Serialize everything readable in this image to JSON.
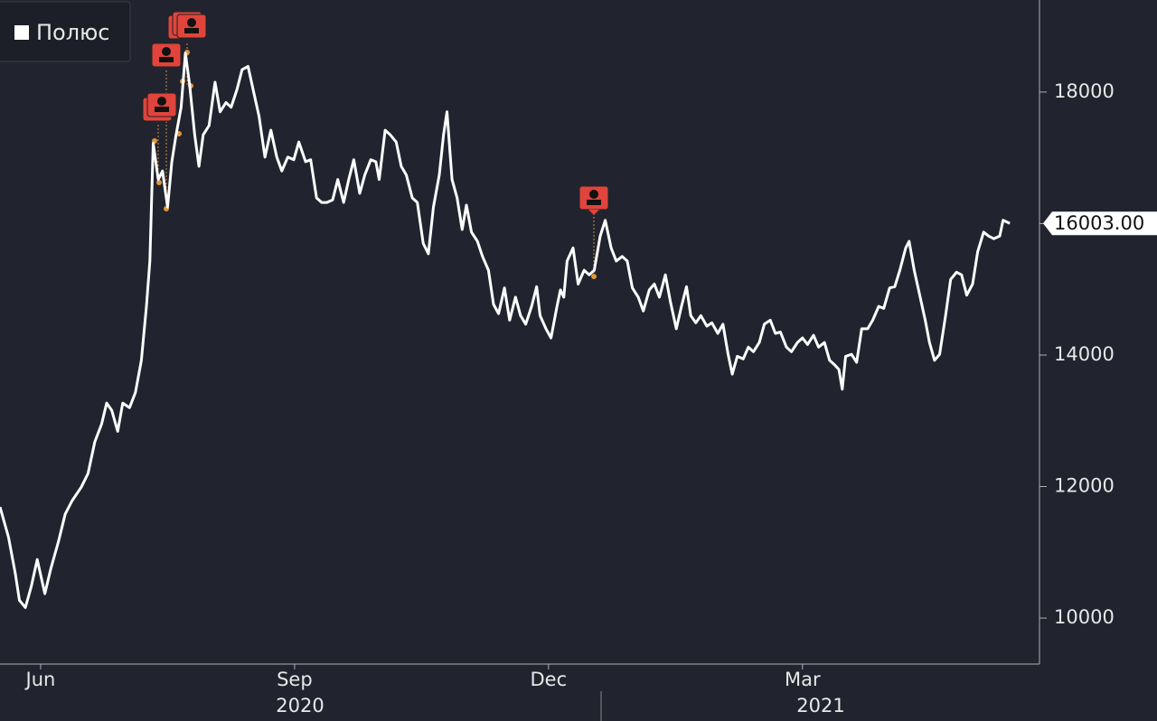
{
  "chart_data": {
    "type": "line",
    "x": [
      4.52,
      4.62,
      4.7,
      4.75,
      4.82,
      4.89,
      4.96,
      5.05,
      5.12,
      5.21,
      5.29,
      5.37,
      5.48,
      5.56,
      5.64,
      5.72,
      5.78,
      5.84,
      5.91,
      5.97,
      6.05,
      6.12,
      6.19,
      6.25,
      6.29,
      6.33,
      6.39,
      6.44,
      6.5,
      6.55,
      6.6,
      6.66,
      6.71,
      6.76,
      6.82,
      6.87,
      6.92,
      6.99,
      7.06,
      7.12,
      7.19,
      7.25,
      7.32,
      7.38,
      7.45,
      7.51,
      7.58,
      7.65,
      7.72,
      7.79,
      7.85,
      7.92,
      7.99,
      8.05,
      8.13,
      8.19,
      8.26,
      8.32,
      8.38,
      8.45,
      8.51,
      8.58,
      8.64,
      8.7,
      8.77,
      8.83,
      8.9,
      8.96,
      9.0,
      9.07,
      9.13,
      9.2,
      9.26,
      9.32,
      9.39,
      9.45,
      9.52,
      9.58,
      9.64,
      9.71,
      9.76,
      9.8,
      9.86,
      9.92,
      9.98,
      10.03,
      10.09,
      10.16,
      10.22,
      10.29,
      10.35,
      10.41,
      10.48,
      10.54,
      10.61,
      10.67,
      10.73,
      10.8,
      10.86,
      10.9,
      10.97,
      11.03,
      11.1,
      11.14,
      11.18,
      11.22,
      11.29,
      11.35,
      11.42,
      11.48,
      11.54,
      11.61,
      11.67,
      11.74,
      11.8,
      11.87,
      11.93,
      11.99,
      12.06,
      12.12,
      12.19,
      12.25,
      12.31,
      12.38,
      12.44,
      12.51,
      12.57,
      12.63,
      12.68,
      12.74,
      12.8,
      12.87,
      12.93,
      13.0,
      13.06,
      13.12,
      13.17,
      13.23,
      13.3,
      13.36,
      13.42,
      13.49,
      13.55,
      13.62,
      13.68,
      13.74,
      13.81,
      13.87,
      13.94,
      14.0,
      14.06,
      14.13,
      14.19,
      14.26,
      14.32,
      14.38,
      14.43,
      14.47,
      14.51,
      14.58,
      14.64,
      14.7,
      14.77,
      14.83,
      14.9,
      14.96,
      15.03,
      15.09,
      15.15,
      15.22,
      15.26,
      15.32,
      15.39,
      15.45,
      15.5,
      15.56,
      15.62,
      15.69,
      15.75,
      15.82,
      15.88,
      15.94,
      16.01,
      16.07,
      16.14,
      16.2,
      16.26,
      16.33,
      16.37,
      16.45
    ],
    "series": [
      {
        "name": "Полюс",
        "color": "#ffffff",
        "values": [
          11690,
          11230,
          10680,
          10270,
          10160,
          10480,
          10890,
          10370,
          10750,
          11160,
          11580,
          11780,
          11990,
          12200,
          12680,
          12950,
          13270,
          13160,
          12840,
          13270,
          13200,
          13430,
          13920,
          14740,
          15430,
          17220,
          16670,
          16800,
          16250,
          16940,
          17350,
          17770,
          18590,
          18110,
          17350,
          16870,
          17350,
          17490,
          18150,
          17700,
          17840,
          17770,
          18040,
          18340,
          18390,
          18040,
          17630,
          17010,
          17420,
          17010,
          16800,
          17010,
          16970,
          17240,
          16940,
          16970,
          16390,
          16320,
          16320,
          16360,
          16670,
          16320,
          16670,
          16970,
          16460,
          16740,
          16970,
          16940,
          16670,
          17420,
          17350,
          17240,
          16870,
          16740,
          16390,
          16320,
          15700,
          15540,
          16250,
          16740,
          17350,
          17700,
          16670,
          16390,
          15910,
          16280,
          15870,
          15730,
          15500,
          15290,
          14770,
          14630,
          15020,
          14530,
          14880,
          14600,
          14470,
          14740,
          15040,
          14600,
          14400,
          14260,
          14740,
          14990,
          14880,
          15430,
          15630,
          15080,
          15290,
          15220,
          15290,
          15810,
          16050,
          15630,
          15430,
          15500,
          15430,
          15020,
          14880,
          14670,
          14990,
          15080,
          14880,
          15220,
          14810,
          14400,
          14740,
          15040,
          14600,
          14490,
          14600,
          14440,
          14490,
          14330,
          14470,
          14020,
          13710,
          13980,
          13940,
          14120,
          14050,
          14190,
          14470,
          14530,
          14330,
          14350,
          14120,
          14050,
          14190,
          14260,
          14160,
          14300,
          14120,
          14190,
          13920,
          13850,
          13780,
          13480,
          13980,
          14010,
          13890,
          14400,
          14400,
          14530,
          14740,
          14710,
          15020,
          15040,
          15290,
          15630,
          15730,
          15290,
          14880,
          14530,
          14190,
          13920,
          14010,
          14600,
          15150,
          15260,
          15220,
          14910,
          15080,
          15570,
          15870,
          15810,
          15770,
          15810,
          16050,
          16003
        ],
        "value_labels": [
          null,
          null,
          null,
          null,
          null,
          null,
          null,
          null,
          null,
          null,
          null,
          null,
          null,
          null,
          null,
          null,
          null,
          null,
          null,
          null,
          null,
          null,
          null,
          null,
          null,
          null,
          null,
          null,
          null,
          null,
          null,
          null,
          null,
          null,
          null,
          null,
          null,
          null,
          null,
          null,
          null,
          null,
          null,
          null,
          null,
          null,
          null,
          null,
          null,
          null,
          null,
          null,
          null,
          null,
          null,
          null,
          null,
          null,
          null,
          null,
          null,
          null,
          null,
          null,
          null,
          null,
          null,
          null,
          null,
          null,
          null,
          null,
          null,
          null,
          null,
          null,
          null,
          null,
          null,
          null,
          null,
          null,
          null,
          null,
          null,
          null,
          null,
          null,
          null,
          null,
          null,
          null,
          null,
          null,
          null,
          null,
          null,
          null,
          null,
          null,
          null,
          null,
          null,
          null,
          null,
          null,
          null,
          null,
          null,
          null,
          null,
          null,
          null,
          null,
          null,
          null,
          null,
          null,
          null,
          null,
          null,
          null,
          null,
          null,
          null,
          null,
          null,
          null,
          null,
          null,
          null,
          null,
          null,
          null,
          null,
          null,
          null,
          null,
          null,
          null,
          null,
          null,
          null,
          null,
          null,
          null,
          null,
          null,
          null,
          null,
          null,
          null,
          null,
          null,
          null,
          null,
          null,
          null,
          null,
          null,
          null,
          null,
          null,
          null,
          null,
          null,
          null,
          null,
          null,
          null,
          null,
          null,
          null,
          null,
          null,
          null,
          null,
          null,
          null,
          null,
          null,
          null,
          null,
          null,
          null,
          null,
          null,
          null,
          null,
          "16003.00"
        ]
      }
    ],
    "xlim": [
      4.52,
      16.8
    ],
    "xticks": [
      {
        "value": 5,
        "label": "Jun"
      },
      {
        "value": 8,
        "label": "Sep"
      },
      {
        "value": 11,
        "label": "Dec"
      },
      {
        "value": 14,
        "label": "Mar"
      }
    ],
    "year_labels": [
      "2020",
      "2021"
    ],
    "ylim": [
      9300,
      19400
    ],
    "yticks": [
      10000,
      12000,
      14000,
      16000,
      18000
    ],
    "grid": false
  }
}
